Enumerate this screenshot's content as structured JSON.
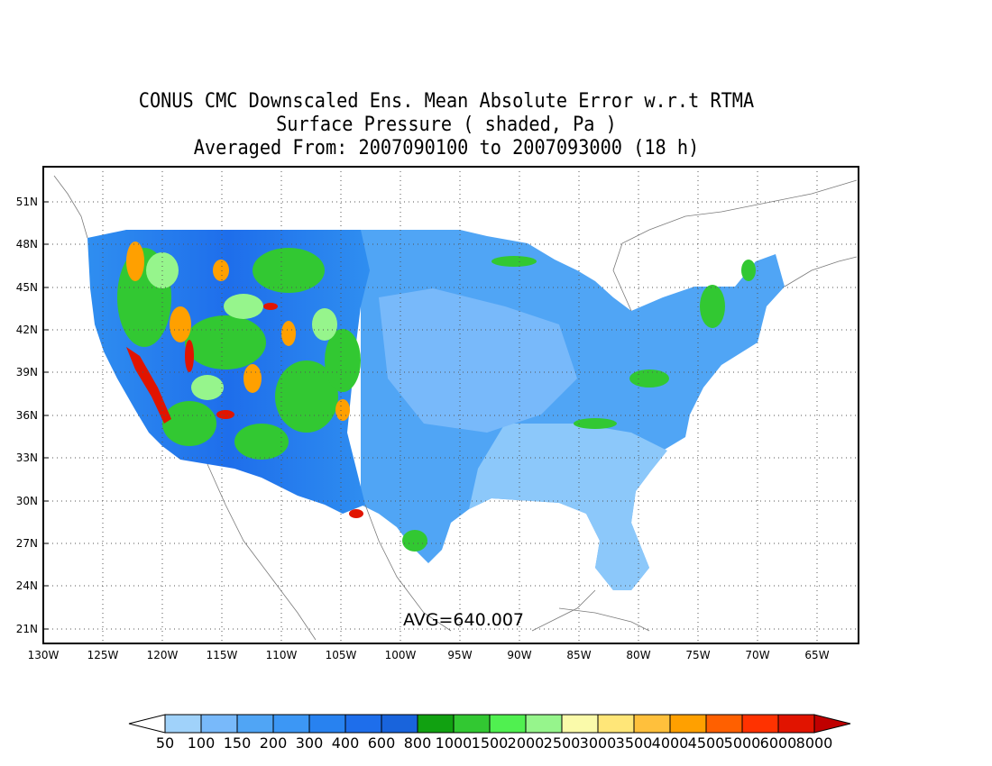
{
  "title": {
    "line1": "CONUS CMC Downscaled Ens. Mean Absolute Error w.r.t RTMA",
    "line2": "Surface Pressure ( shaded, Pa )",
    "line3": "Averaged From: 2007090100 to 2007093000 (18 h)"
  },
  "map": {
    "lon_ticks": [
      "130W",
      "125W",
      "120W",
      "115W",
      "110W",
      "105W",
      "100W",
      "95W",
      "90W",
      "85W",
      "80W",
      "75W",
      "70W",
      "65W"
    ],
    "lat_ticks": [
      "51N",
      "48N",
      "45N",
      "42N",
      "39N",
      "36N",
      "33N",
      "30N",
      "27N",
      "24N",
      "21N"
    ],
    "lon_range": [
      -130,
      -62
    ],
    "lat_range": [
      20,
      53
    ],
    "annotation": "AVG=640.007",
    "grid": "dotted"
  },
  "colorbar": {
    "labels": [
      "50",
      "100",
      "150",
      "200",
      "300",
      "400",
      "600",
      "800",
      "1000",
      "1500",
      "2000",
      "2500",
      "3000",
      "3500",
      "4000",
      "4500",
      "5000",
      "6000",
      "8000"
    ],
    "colors": [
      "#a0d2fa",
      "#78b9fa",
      "#50a5f5",
      "#3c97f5",
      "#2882f0",
      "#1e6eeb",
      "#1964dc",
      "#11a111",
      "#32c832",
      "#50f050",
      "#96f58c",
      "#fafaaa",
      "#ffe678",
      "#ffc03c",
      "#ffa000",
      "#ff6000",
      "#ff3200",
      "#e11400",
      "#c00000"
    ]
  }
}
